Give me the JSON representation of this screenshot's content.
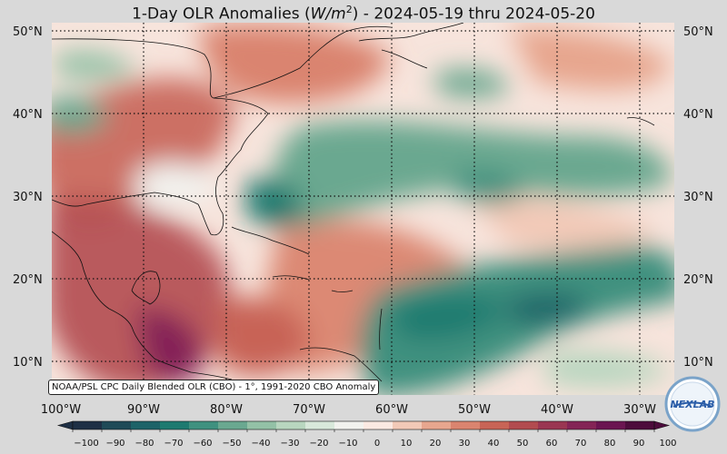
{
  "title_prefix": "1-Day OLR Anomalies (",
  "title_unit": "W/m",
  "title_sup": "2",
  "title_suffix": ") - 2024-05-19 thru 2024-05-20",
  "lat_labels": [
    "50°N",
    "40°N",
    "30°N",
    "20°N",
    "10°N"
  ],
  "lon_labels": [
    "100°W",
    "90°W",
    "80°W",
    "70°W",
    "60°W",
    "50°W",
    "40°W",
    "30°W"
  ],
  "credit": "NOAA/PSL CPC Daily Blended OLR (CBO) - 1°, 1991-2020 CBO Anomaly",
  "logo_text": "NEXLAB",
  "colorbar": {
    "ticks": [
      "−100",
      "−90",
      "−80",
      "−70",
      "−60",
      "−50",
      "−40",
      "−30",
      "−20",
      "−10",
      "0",
      "10",
      "20",
      "30",
      "40",
      "50",
      "60",
      "70",
      "80",
      "90",
      "100"
    ],
    "colors": [
      "#1e2f45",
      "#1f4a57",
      "#1d6368",
      "#1d7a70",
      "#3f917f",
      "#6aa890",
      "#93c1a6",
      "#b8d6bf",
      "#d8e8da",
      "#f2f2ee",
      "#fbe9e2",
      "#f2c9b7",
      "#e7a68e",
      "#da846f",
      "#c86456",
      "#b24b4f",
      "#9a3652",
      "#842456",
      "#6b1551",
      "#4d0c3c"
    ]
  },
  "map": {
    "legend_tone": "neutral",
    "regions": [
      {
        "name": "gulf-warm",
        "color": "#c86456"
      },
      {
        "name": "caribbean-warm",
        "color": "#da846f"
      },
      {
        "name": "atlantic-cool-band",
        "color": "#6aa890"
      },
      {
        "name": "tropical-cool-band",
        "color": "#3f917f"
      }
    ]
  }
}
